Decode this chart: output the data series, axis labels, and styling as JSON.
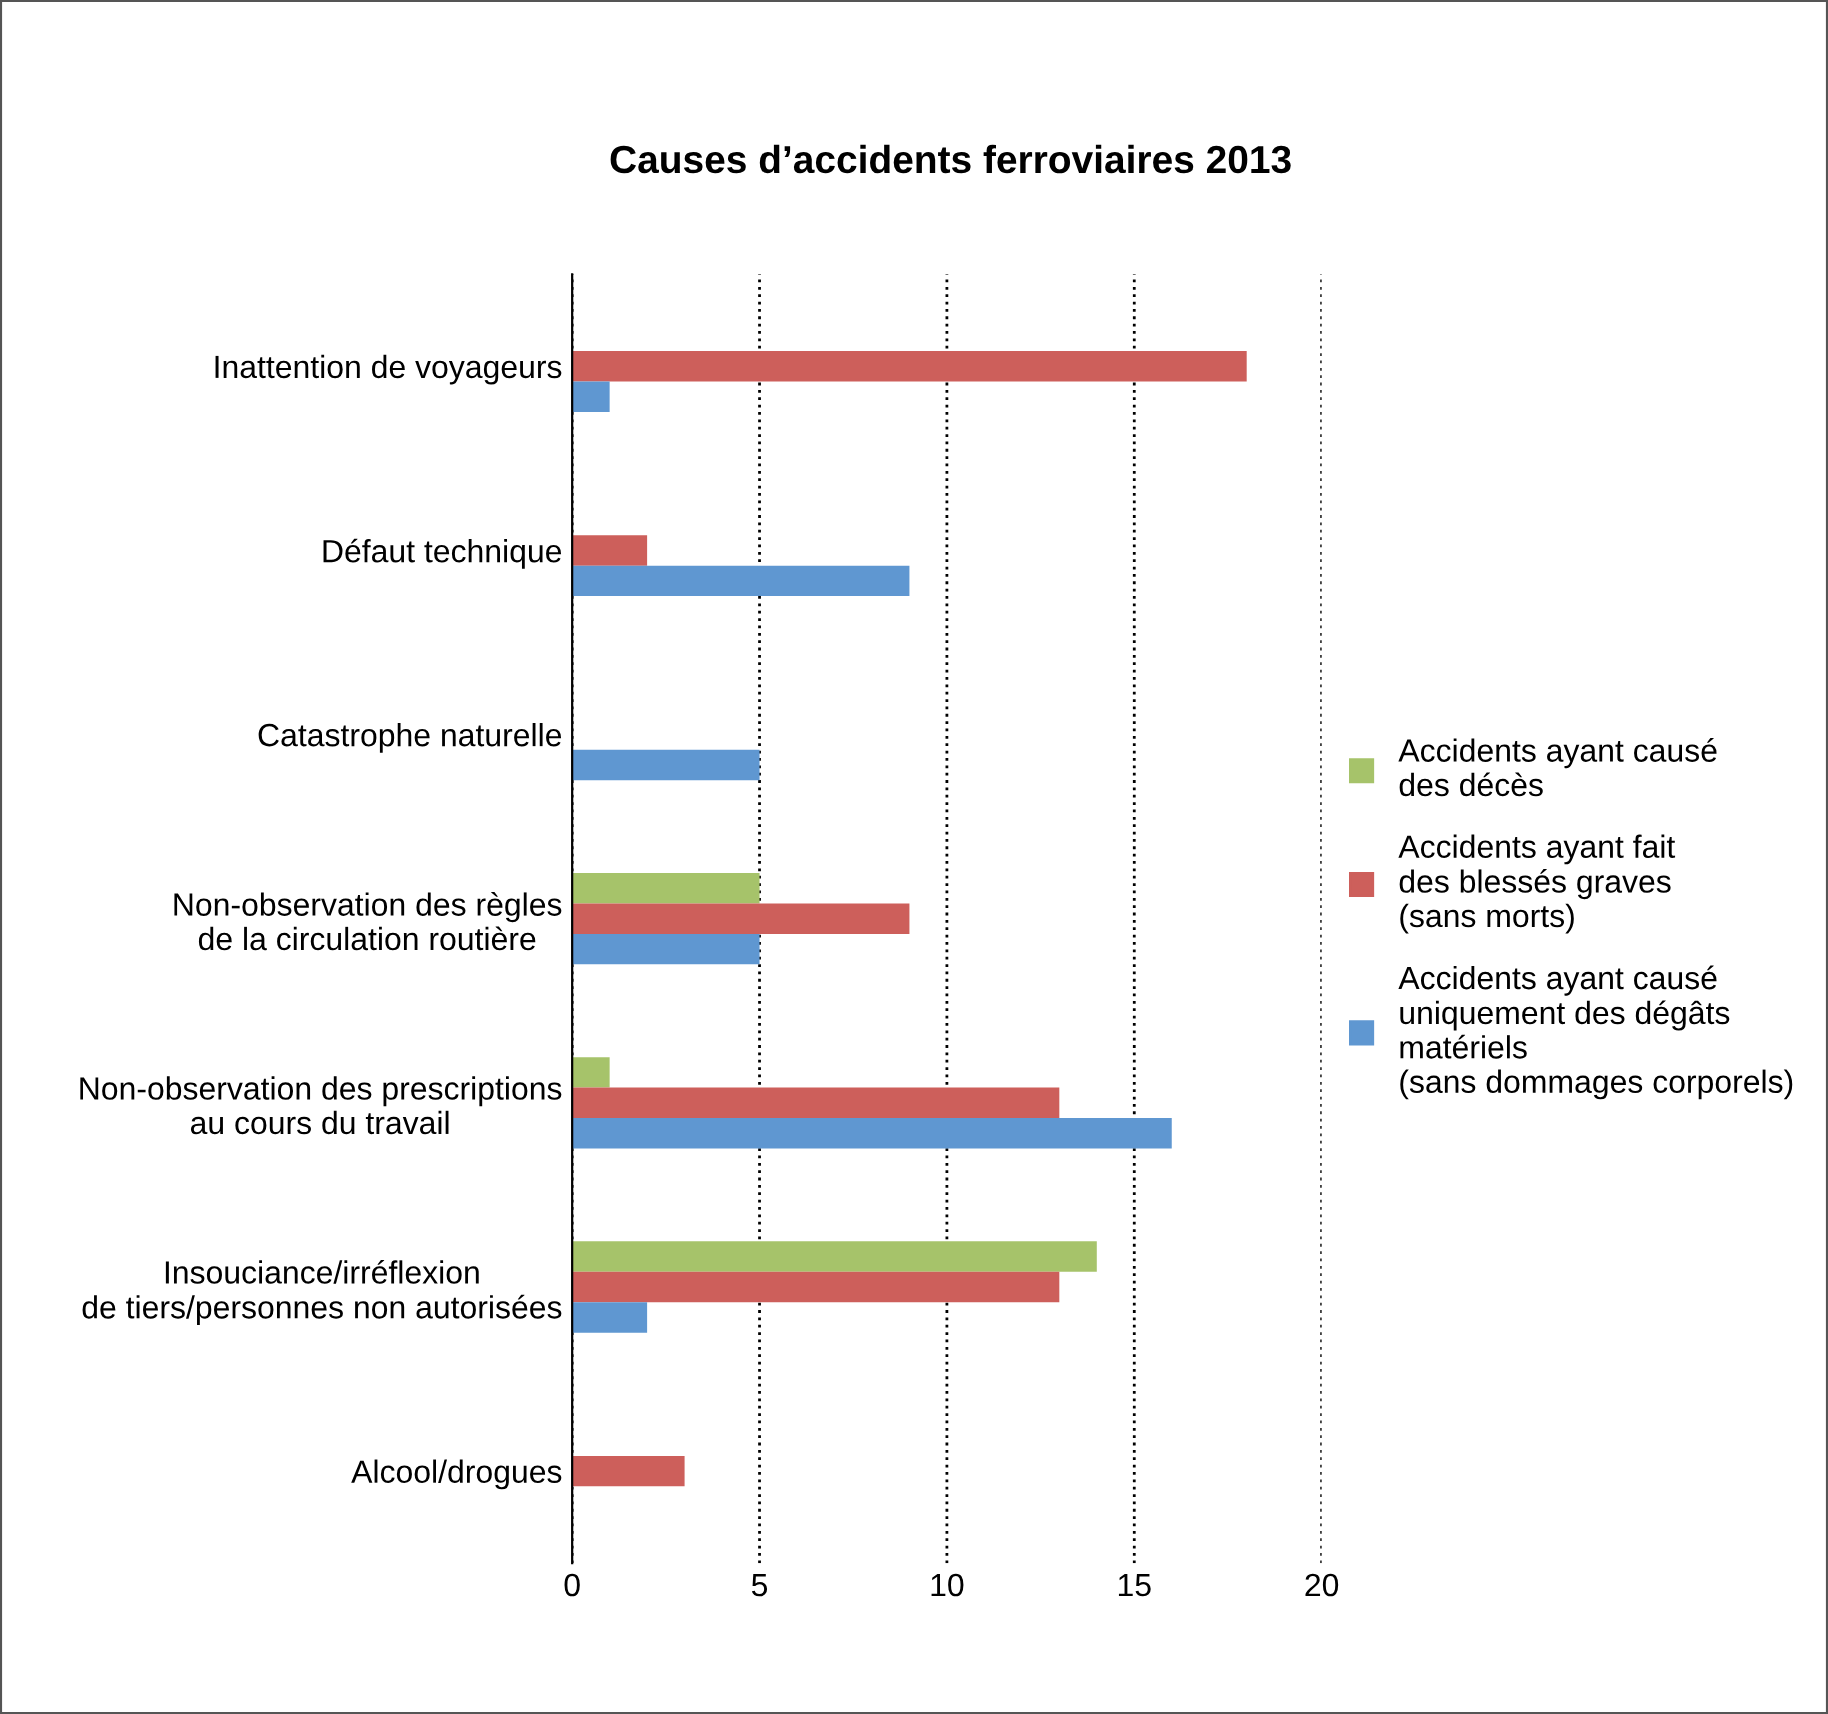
{
  "chart_data": {
    "type": "bar",
    "orientation": "horizontal",
    "title": "Causes d’accidents ferroviaires 2013",
    "categories": [
      "Inattention de voyageurs",
      "Défaut technique",
      "Catastrophe naturelle",
      "Non-observation des règles\nde la circulation routière",
      "Non-observation des prescriptions\nau cours du travail",
      "Insouciance/irréflexion\nde tiers/personnes non autorisées",
      "Alcool/drogues"
    ],
    "series": [
      {
        "name": "Accidents ayant causé\ndes décès",
        "color": "#a6c36a",
        "values": [
          0,
          0,
          0,
          5,
          1,
          14,
          0
        ]
      },
      {
        "name": "Accidents ayant fait\ndes blessés graves\n(sans morts)",
        "color": "#cd5f5b",
        "values": [
          18,
          2,
          0,
          9,
          13,
          13,
          3
        ]
      },
      {
        "name": "Accidents ayant causé\nuniquement des dégâts\nmatériels\n(sans dommages corporels)",
        "color": "#5f97d1",
        "values": [
          1,
          9,
          5,
          5,
          16,
          2,
          0
        ]
      }
    ],
    "xlim": [
      0,
      20
    ],
    "xticks": [
      0,
      5,
      10,
      15,
      20
    ],
    "grid": "x",
    "legend": "right"
  }
}
